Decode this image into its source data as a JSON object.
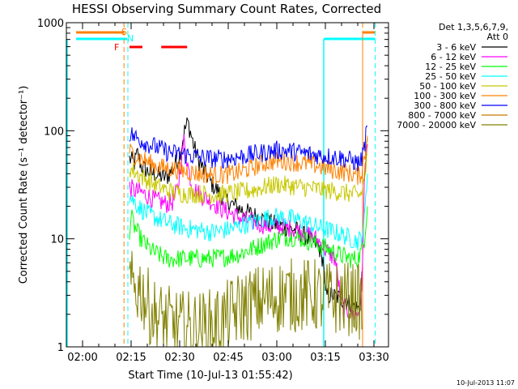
{
  "chart_data": {
    "type": "line",
    "title": "HESSI Observing Summary Count Rates, Corrected",
    "xlabel": "Start Time (10-Jul-13 01:55:42)",
    "ylabel": "Corrected Count Rate (s⁻¹ detector⁻¹)",
    "yscale": "log",
    "ylim": [
      1,
      1000
    ],
    "xlim_minutes": [
      1.7,
      35.8
    ],
    "x_ticks": [
      {
        "label": "02:00",
        "min": 0
      },
      {
        "label": "02:15",
        "min": 15
      },
      {
        "label": "02:30",
        "min": 30
      },
      {
        "label": "02:45",
        "min": 45
      },
      {
        "label": "03:00",
        "min": 60
      },
      {
        "label": "03:15",
        "min": 75
      },
      {
        "label": "03:30",
        "min": 90
      }
    ],
    "y_ticks": [
      {
        "label": "1",
        "value": 1
      },
      {
        "label": "10",
        "value": 10
      },
      {
        "label": "100",
        "value": 100
      },
      {
        "label": "1000",
        "value": 1000
      }
    ],
    "legend": {
      "header_line1": "Det 1,3,5,6,7,9,",
      "header_line2": "Att 0",
      "placement": "right"
    },
    "timestamp": "10-Jul-2013 11:07",
    "flags": {
      "S_label": "S",
      "N_label": "N",
      "F_label": "F",
      "saa_color": "#ff8000",
      "night_color": "#00ffff",
      "flare_color": "#ff0000",
      "saa_segments": [
        [
          -2,
          12.8
        ],
        [
          86.5,
          90.4
        ]
      ],
      "night_segments": [
        [
          -2,
          13.8
        ],
        [
          74.5,
          90.4
        ]
      ],
      "flare_segments": [
        [
          14.5,
          18.5
        ],
        [
          24.3,
          32.3
        ]
      ],
      "dashed_orange": [
        12.8,
        86.5
      ],
      "dashed_cyan": [
        14.0,
        90.4
      ],
      "solid_cyan": [
        -2,
        74.5
      ]
    },
    "series": [
      {
        "name": "3 - 6 keV",
        "color": "#000000",
        "points": [
          [
            14.5,
            55
          ],
          [
            16,
            50
          ],
          [
            17,
            62
          ],
          [
            18,
            48
          ],
          [
            20,
            42
          ],
          [
            22,
            40
          ],
          [
            24,
            38
          ],
          [
            26,
            37
          ],
          [
            28,
            45
          ],
          [
            30,
            60
          ],
          [
            31.5,
            100
          ],
          [
            32.5,
            120
          ],
          [
            33.3,
            98
          ],
          [
            34.5,
            70
          ],
          [
            36,
            52
          ],
          [
            38,
            40
          ],
          [
            40,
            32
          ],
          [
            43,
            25
          ],
          [
            46,
            21
          ],
          [
            50,
            18
          ],
          [
            54,
            16
          ],
          [
            58,
            14
          ],
          [
            62,
            13
          ],
          [
            66,
            12
          ],
          [
            70,
            10
          ],
          [
            73,
            8.5
          ],
          [
            74.5,
            6
          ],
          [
            75,
            3
          ],
          [
            77,
            3
          ],
          [
            80,
            2.8
          ],
          [
            83,
            2.5
          ],
          [
            85.5,
            2.2
          ],
          [
            86,
            3
          ],
          [
            86.3,
            5
          ]
        ]
      },
      {
        "name": "6 - 12 keV",
        "color": "#ff00ff",
        "points": [
          [
            14.5,
            30
          ],
          [
            16,
            28
          ],
          [
            18,
            27
          ],
          [
            20,
            25
          ],
          [
            22,
            23
          ],
          [
            24,
            22
          ],
          [
            26,
            21
          ],
          [
            28,
            22
          ],
          [
            29.5,
            30
          ],
          [
            30.5,
            55
          ],
          [
            31.3,
            80
          ],
          [
            32,
            60
          ],
          [
            33,
            40
          ],
          [
            34,
            30
          ],
          [
            36,
            26
          ],
          [
            38,
            24
          ],
          [
            40,
            22
          ],
          [
            43,
            19
          ],
          [
            46,
            17
          ],
          [
            50,
            15
          ],
          [
            54,
            14
          ],
          [
            58,
            13
          ],
          [
            62,
            13
          ],
          [
            66,
            12
          ],
          [
            70,
            11
          ],
          [
            73,
            9.5
          ],
          [
            75,
            8
          ],
          [
            78,
            6.5
          ],
          [
            80,
            2.5
          ],
          [
            83,
            2
          ],
          [
            85,
            2
          ],
          [
            86.2,
            3
          ],
          [
            87,
            30
          ],
          [
            88,
            75
          ]
        ]
      },
      {
        "name": "12 - 25 keV",
        "color": "#00ff00",
        "points": [
          [
            14.5,
            12
          ],
          [
            15,
            16
          ],
          [
            16,
            13
          ],
          [
            18,
            10
          ],
          [
            20,
            8.5
          ],
          [
            22,
            7.5
          ],
          [
            24,
            7
          ],
          [
            26,
            6.5
          ],
          [
            28,
            6.5
          ],
          [
            32,
            6.6
          ],
          [
            36,
            6.5
          ],
          [
            40,
            6.6
          ],
          [
            44,
            6.8
          ],
          [
            48,
            7.2
          ],
          [
            52,
            8
          ],
          [
            56,
            9
          ],
          [
            60,
            10
          ],
          [
            64,
            10.5
          ],
          [
            68,
            10
          ],
          [
            72,
            9
          ],
          [
            76,
            8
          ],
          [
            80,
            7
          ],
          [
            83,
            6.5
          ],
          [
            85,
            6.5
          ],
          [
            86,
            7.5
          ],
          [
            87,
            10
          ],
          [
            88,
            20
          ]
        ]
      },
      {
        "name": "25 - 50 keV",
        "color": "#00ffff",
        "points": [
          [
            14.5,
            25
          ],
          [
            16,
            22
          ],
          [
            18,
            19
          ],
          [
            20,
            17
          ],
          [
            22,
            16
          ],
          [
            24,
            15
          ],
          [
            26,
            14
          ],
          [
            28,
            13.5
          ],
          [
            32,
            12.5
          ],
          [
            36,
            12
          ],
          [
            40,
            11.5
          ],
          [
            44,
            12
          ],
          [
            48,
            13
          ],
          [
            52,
            14
          ],
          [
            56,
            15.5
          ],
          [
            60,
            16
          ],
          [
            64,
            15.5
          ],
          [
            68,
            14.5
          ],
          [
            72,
            13
          ],
          [
            76,
            12
          ],
          [
            80,
            11
          ],
          [
            83,
            10
          ],
          [
            85,
            9.5
          ],
          [
            86,
            10
          ],
          [
            87,
            14
          ],
          [
            88,
            40
          ]
        ]
      },
      {
        "name": "50 - 100 keV",
        "color": "#c8c800",
        "points": [
          [
            14.5,
            45
          ],
          [
            16,
            42
          ],
          [
            18,
            38
          ],
          [
            20,
            35
          ],
          [
            22,
            32
          ],
          [
            24,
            30
          ],
          [
            26,
            28
          ],
          [
            28,
            27
          ],
          [
            32,
            26
          ],
          [
            36,
            26
          ],
          [
            40,
            25.5
          ],
          [
            44,
            26
          ],
          [
            48,
            27
          ],
          [
            52,
            28
          ],
          [
            56,
            30
          ],
          [
            60,
            32
          ],
          [
            64,
            31
          ],
          [
            68,
            30
          ],
          [
            72,
            29
          ],
          [
            76,
            28
          ],
          [
            80,
            27
          ],
          [
            83,
            26
          ],
          [
            85,
            25
          ],
          [
            86,
            26
          ],
          [
            87,
            35
          ],
          [
            88,
            60
          ]
        ]
      },
      {
        "name": "100 - 300 keV",
        "color": "#ff8000",
        "points": [
          [
            14.5,
            65
          ],
          [
            16,
            60
          ],
          [
            18,
            55
          ],
          [
            20,
            52
          ],
          [
            22,
            48
          ],
          [
            24,
            46
          ],
          [
            26,
            45
          ],
          [
            28,
            44
          ],
          [
            32,
            42
          ],
          [
            36,
            40
          ],
          [
            40,
            39
          ],
          [
            44,
            39
          ],
          [
            48,
            41
          ],
          [
            52,
            45
          ],
          [
            56,
            50
          ],
          [
            60,
            53
          ],
          [
            64,
            52
          ],
          [
            68,
            50
          ],
          [
            72,
            48
          ],
          [
            76,
            44
          ],
          [
            80,
            42
          ],
          [
            83,
            40
          ],
          [
            85,
            38
          ],
          [
            86,
            40
          ],
          [
            87,
            55
          ],
          [
            88,
            90
          ]
        ]
      },
      {
        "name": "300 - 800 keV",
        "color": "#0000ff",
        "points": [
          [
            14.5,
            95
          ],
          [
            16,
            88
          ],
          [
            18,
            82
          ],
          [
            20,
            76
          ],
          [
            22,
            72
          ],
          [
            24,
            68
          ],
          [
            26,
            64
          ],
          [
            28,
            62
          ],
          [
            32,
            60
          ],
          [
            36,
            57
          ],
          [
            40,
            55
          ],
          [
            44,
            55
          ],
          [
            48,
            57
          ],
          [
            52,
            60
          ],
          [
            56,
            63
          ],
          [
            60,
            66
          ],
          [
            64,
            65
          ],
          [
            68,
            62
          ],
          [
            72,
            60
          ],
          [
            76,
            58
          ],
          [
            80,
            56
          ],
          [
            83,
            53
          ],
          [
            85,
            50
          ],
          [
            86,
            52
          ],
          [
            87,
            70
          ],
          [
            88,
            110
          ]
        ]
      },
      {
        "name": "800 - 7000 keV",
        "color": "#c87800",
        "points": [
          [
            87,
            30
          ],
          [
            87.5,
            60
          ],
          [
            88,
            85
          ]
        ]
      },
      {
        "name": "7000 - 20000 keV",
        "color": "#808000",
        "points": [
          [
            14.5,
            3.5
          ],
          [
            18,
            3.5
          ],
          [
            20,
            2.5
          ],
          [
            22,
            2
          ],
          [
            24,
            1.8
          ],
          [
            26,
            1.7
          ],
          [
            28,
            1.6
          ],
          [
            30,
            1.5
          ],
          [
            32,
            1.5
          ],
          [
            34,
            1.5
          ],
          [
            36,
            1.5
          ],
          [
            38,
            1.5
          ],
          [
            40,
            1.6
          ],
          [
            42,
            1.7
          ],
          [
            44,
            1.8
          ],
          [
            46,
            2
          ],
          [
            48,
            2.2
          ],
          [
            50,
            2.4
          ],
          [
            52,
            2.5
          ],
          [
            54,
            2.6
          ],
          [
            56,
            2.7
          ],
          [
            58,
            2.8
          ],
          [
            60,
            2.9
          ],
          [
            62,
            3
          ],
          [
            64,
            3
          ],
          [
            66,
            3
          ],
          [
            68,
            3
          ],
          [
            70,
            3
          ],
          [
            72,
            3
          ],
          [
            74,
            2.8
          ],
          [
            76,
            2.8
          ],
          [
            78,
            2.8
          ],
          [
            80,
            2.8
          ],
          [
            82,
            2.8
          ],
          [
            84,
            2.8
          ],
          [
            86,
            2.5
          ],
          [
            86.5,
            1.5
          ]
        ]
      }
    ]
  }
}
